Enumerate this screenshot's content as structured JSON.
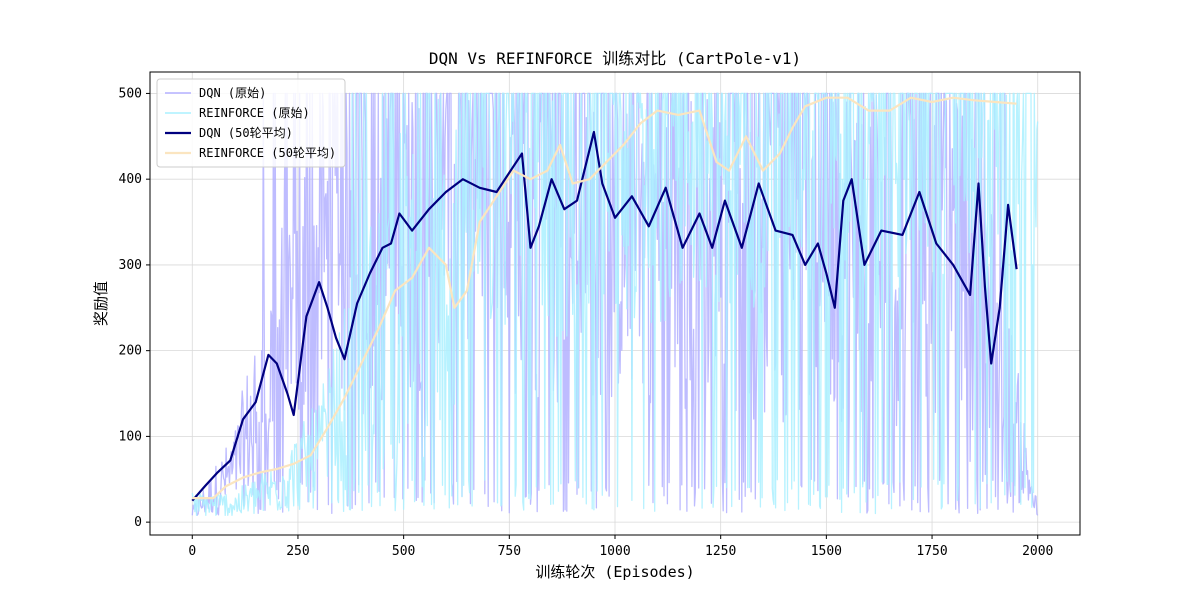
{
  "chart_data": {
    "type": "line",
    "title": "DQN Vs REFINFORCE 训练对比 (CartPole-v1)",
    "xlabel": "训练轮次 (Episodes)",
    "ylabel": "奖励值",
    "xlim": [
      -100,
      2100
    ],
    "ylim": [
      -15,
      525
    ],
    "x_ticks": [
      0,
      250,
      500,
      750,
      1000,
      1250,
      1500,
      1750,
      2000
    ],
    "y_ticks": [
      0,
      100,
      200,
      300,
      400,
      500
    ],
    "grid": true,
    "legend_position": "top-left",
    "series": [
      {
        "name": "DQN (原始)",
        "color": "#b3b0ff",
        "style": "raw-noisy",
        "x_range": [
          0,
          2000
        ],
        "anchors": [
          [
            0,
            10
          ],
          [
            100,
            60
          ],
          [
            200,
            200
          ],
          [
            300,
            300
          ],
          [
            400,
            330
          ],
          [
            500,
            350
          ],
          [
            600,
            380
          ],
          [
            800,
            350
          ],
          [
            1000,
            350
          ],
          [
            1200,
            340
          ],
          [
            1400,
            320
          ],
          [
            1600,
            330
          ],
          [
            1800,
            300
          ],
          [
            1900,
            200
          ],
          [
            2000,
            10
          ]
        ]
      },
      {
        "name": "REINFORCE (原始)",
        "color": "#aaf0ff",
        "style": "raw-noisy",
        "x_range": [
          0,
          2000
        ],
        "anchors": [
          [
            0,
            20
          ],
          [
            100,
            20
          ],
          [
            200,
            40
          ],
          [
            300,
            80
          ],
          [
            400,
            180
          ],
          [
            500,
            270
          ],
          [
            600,
            300
          ],
          [
            700,
            390
          ],
          [
            800,
            420
          ],
          [
            1000,
            420
          ],
          [
            1200,
            460
          ],
          [
            1400,
            460
          ],
          [
            1600,
            480
          ],
          [
            1800,
            490
          ],
          [
            2000,
            500
          ]
        ]
      },
      {
        "name": "DQN (50轮平均)",
        "color": "#00007f",
        "style": "smoothed",
        "points": [
          [
            0,
            25
          ],
          [
            30,
            42
          ],
          [
            60,
            58
          ],
          [
            90,
            72
          ],
          [
            120,
            120
          ],
          [
            150,
            140
          ],
          [
            180,
            195
          ],
          [
            200,
            185
          ],
          [
            225,
            150
          ],
          [
            240,
            125
          ],
          [
            270,
            240
          ],
          [
            300,
            280
          ],
          [
            320,
            250
          ],
          [
            340,
            215
          ],
          [
            360,
            190
          ],
          [
            390,
            255
          ],
          [
            420,
            290
          ],
          [
            450,
            320
          ],
          [
            470,
            325
          ],
          [
            490,
            360
          ],
          [
            520,
            340
          ],
          [
            560,
            365
          ],
          [
            600,
            385
          ],
          [
            640,
            400
          ],
          [
            680,
            390
          ],
          [
            720,
            385
          ],
          [
            760,
            415
          ],
          [
            780,
            430
          ],
          [
            800,
            320
          ],
          [
            820,
            345
          ],
          [
            850,
            400
          ],
          [
            880,
            365
          ],
          [
            910,
            375
          ],
          [
            950,
            455
          ],
          [
            970,
            395
          ],
          [
            1000,
            355
          ],
          [
            1040,
            380
          ],
          [
            1080,
            345
          ],
          [
            1120,
            390
          ],
          [
            1160,
            320
          ],
          [
            1200,
            360
          ],
          [
            1230,
            320
          ],
          [
            1260,
            375
          ],
          [
            1300,
            320
          ],
          [
            1340,
            395
          ],
          [
            1380,
            340
          ],
          [
            1420,
            335
          ],
          [
            1450,
            300
          ],
          [
            1480,
            325
          ],
          [
            1500,
            290
          ],
          [
            1520,
            250
          ],
          [
            1540,
            375
          ],
          [
            1560,
            400
          ],
          [
            1590,
            300
          ],
          [
            1630,
            340
          ],
          [
            1680,
            335
          ],
          [
            1720,
            385
          ],
          [
            1760,
            325
          ],
          [
            1800,
            300
          ],
          [
            1840,
            265
          ],
          [
            1860,
            395
          ],
          [
            1875,
            275
          ],
          [
            1890,
            185
          ],
          [
            1910,
            250
          ],
          [
            1930,
            370
          ],
          [
            1950,
            295
          ]
        ]
      },
      {
        "name": "REINFORCE (50轮平均)",
        "color": "#fbe5c0",
        "style": "smoothed",
        "points": [
          [
            0,
            28
          ],
          [
            50,
            28
          ],
          [
            80,
            42
          ],
          [
            120,
            52
          ],
          [
            160,
            58
          ],
          [
            200,
            62
          ],
          [
            240,
            68
          ],
          [
            280,
            78
          ],
          [
            320,
            110
          ],
          [
            360,
            145
          ],
          [
            400,
            185
          ],
          [
            440,
            225
          ],
          [
            480,
            270
          ],
          [
            520,
            285
          ],
          [
            560,
            320
          ],
          [
            600,
            300
          ],
          [
            620,
            250
          ],
          [
            650,
            270
          ],
          [
            680,
            350
          ],
          [
            720,
            380
          ],
          [
            760,
            410
          ],
          [
            800,
            400
          ],
          [
            840,
            410
          ],
          [
            870,
            440
          ],
          [
            900,
            395
          ],
          [
            940,
            400
          ],
          [
            980,
            420
          ],
          [
            1020,
            440
          ],
          [
            1060,
            465
          ],
          [
            1100,
            480
          ],
          [
            1150,
            475
          ],
          [
            1200,
            480
          ],
          [
            1240,
            420
          ],
          [
            1270,
            410
          ],
          [
            1310,
            450
          ],
          [
            1350,
            410
          ],
          [
            1390,
            430
          ],
          [
            1420,
            460
          ],
          [
            1450,
            485
          ],
          [
            1500,
            495
          ],
          [
            1550,
            495
          ],
          [
            1600,
            480
          ],
          [
            1650,
            480
          ],
          [
            1700,
            495
          ],
          [
            1750,
            490
          ],
          [
            1800,
            495
          ],
          [
            1850,
            492
          ],
          [
            1900,
            490
          ],
          [
            1950,
            488
          ]
        ]
      }
    ]
  }
}
